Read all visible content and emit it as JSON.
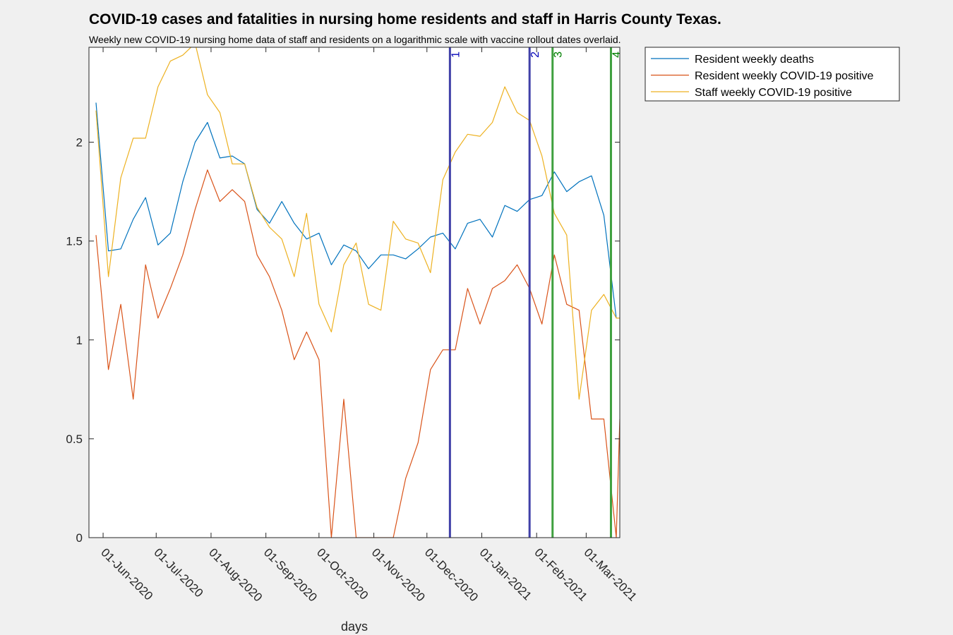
{
  "chart_data": {
    "type": "line",
    "title": "COVID-19 cases and fatalities in nursing home residents and staff in Harris County Texas.",
    "subtitle": "Weekly new COVID-19 nursing home data of staff and residents on a logarithmic scale with vaccine rollout dates overlaid.",
    "xlabel": "days",
    "ylabel": "",
    "xlim": [
      "2020-05-24",
      "2021-03-20"
    ],
    "ylim": [
      0,
      2.48
    ],
    "y_ticks": [
      {
        "value": 0,
        "label": "0"
      },
      {
        "value": 0.5,
        "label": "0.5"
      },
      {
        "value": 1,
        "label": "1"
      },
      {
        "value": 1.5,
        "label": "1.5"
      },
      {
        "value": 2,
        "label": "2"
      }
    ],
    "x_ticks": [
      {
        "date": "2020-06-01",
        "label": "01-Jun-2020"
      },
      {
        "date": "2020-07-01",
        "label": "01-Jul-2020"
      },
      {
        "date": "2020-08-01",
        "label": "01-Aug-2020"
      },
      {
        "date": "2020-09-01",
        "label": "01-Sep-2020"
      },
      {
        "date": "2020-10-01",
        "label": "01-Oct-2020"
      },
      {
        "date": "2020-11-01",
        "label": "01-Nov-2020"
      },
      {
        "date": "2020-12-01",
        "label": "01-Dec-2020"
      },
      {
        "date": "2021-01-01",
        "label": "01-Jan-2021"
      },
      {
        "date": "2021-02-01",
        "label": "01-Feb-2021"
      },
      {
        "date": "2021-03-01",
        "label": "01-Mar-2021"
      }
    ],
    "grid": false,
    "legend_position": "outside-top-right",
    "x": [
      "2020-05-28",
      "2020-06-04",
      "2020-06-11",
      "2020-06-18",
      "2020-06-25",
      "2020-07-02",
      "2020-07-09",
      "2020-07-16",
      "2020-07-23",
      "2020-07-30",
      "2020-08-06",
      "2020-08-13",
      "2020-08-20",
      "2020-08-27",
      "2020-09-03",
      "2020-09-10",
      "2020-09-17",
      "2020-09-24",
      "2020-10-01",
      "2020-10-08",
      "2020-10-15",
      "2020-10-22",
      "2020-10-29",
      "2020-11-05",
      "2020-11-12",
      "2020-11-19",
      "2020-11-26",
      "2020-12-03",
      "2020-12-10",
      "2020-12-17",
      "2020-12-24",
      "2020-12-31",
      "2021-01-07",
      "2021-01-14",
      "2021-01-21",
      "2021-01-28",
      "2021-02-04",
      "2021-02-11",
      "2021-02-18",
      "2021-02-25",
      "2021-03-04",
      "2021-03-11",
      "2021-03-18"
    ],
    "series": [
      {
        "name": "Resident weekly deaths",
        "color": "#0072bd",
        "values": [
          2.2,
          1.45,
          1.46,
          1.61,
          1.72,
          1.48,
          1.54,
          1.8,
          2.0,
          2.1,
          1.92,
          1.93,
          1.89,
          1.66,
          1.59,
          1.7,
          1.59,
          1.51,
          1.54,
          1.38,
          1.48,
          1.45,
          1.36,
          1.43,
          1.43,
          1.41,
          1.46,
          1.52,
          1.54,
          1.46,
          1.59,
          1.61,
          1.52,
          1.68,
          1.65,
          1.71,
          1.73,
          1.85,
          1.75,
          1.8,
          1.83,
          1.63,
          1.11
        ]
      },
      {
        "name": "Resident weekly COVID-19 positive",
        "color": "#d95319",
        "values": [
          1.53,
          0.85,
          1.18,
          0.7,
          1.38,
          1.11,
          1.26,
          1.43,
          1.66,
          1.86,
          1.7,
          1.76,
          1.7,
          1.43,
          1.32,
          1.15,
          0.9,
          1.04,
          0.9,
          0.0,
          0.7,
          0.0,
          0.0,
          0.0,
          0.0,
          0.3,
          0.48,
          0.85,
          0.95,
          0.95,
          1.26,
          1.08,
          1.26,
          1.3,
          1.38,
          1.26,
          1.08,
          1.43,
          1.18,
          1.15,
          0.6,
          0.6,
          0.0
        ]
      },
      {
        "name": "Staff weekly COVID-19 positive",
        "color": "#edb120",
        "values": [
          2.16,
          1.32,
          1.82,
          2.02,
          2.02,
          2.28,
          2.41,
          2.44,
          2.5,
          2.24,
          2.15,
          1.89,
          1.89,
          1.67,
          1.57,
          1.51,
          1.32,
          1.64,
          1.18,
          1.04,
          1.38,
          1.49,
          1.18,
          1.15,
          1.6,
          1.51,
          1.49,
          1.34,
          1.81,
          1.95,
          2.04,
          2.03,
          2.1,
          2.28,
          2.15,
          2.11,
          1.93,
          1.64,
          1.53,
          0.7,
          1.15,
          1.23,
          1.11
        ]
      }
    ],
    "tail_points": [
      {
        "series": 1,
        "x": "2021-03-20",
        "y": 0.6
      },
      {
        "series": 2,
        "x": "2021-03-20",
        "y": 1.11
      }
    ],
    "vertical_lines": [
      {
        "date": "2020-12-14",
        "label": "1",
        "color": "#0000b8",
        "line_color": "#4040a8"
      },
      {
        "date": "2021-01-28",
        "label": "2",
        "color": "#0000b8",
        "line_color": "#4040a8"
      },
      {
        "date": "2021-02-10",
        "label": "3",
        "color": "#008000",
        "line_color": "#3fa03f"
      },
      {
        "date": "2021-03-15",
        "label": "4",
        "color": "#008000",
        "line_color": "#3fa03f"
      }
    ]
  }
}
